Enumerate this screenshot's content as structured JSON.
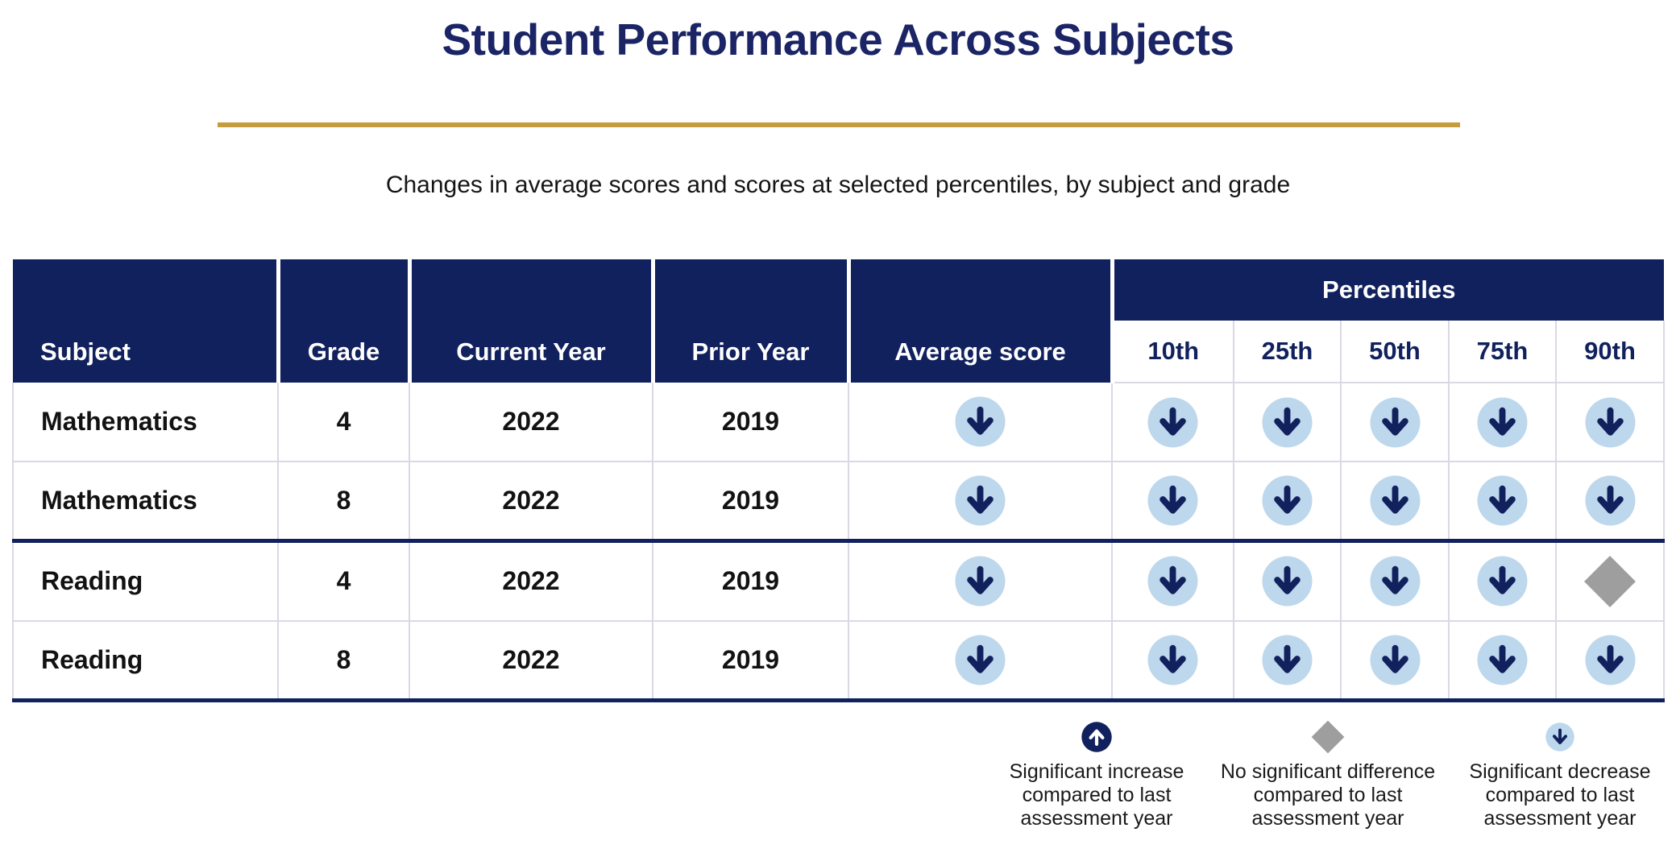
{
  "page": {
    "title": "Student Performance Across Subjects",
    "subtitle": "Changes in average scores and scores at selected percentiles, by subject and grade"
  },
  "colors": {
    "navy": "#11215D",
    "title_navy": "#1B2566",
    "light_blue": "#BDD7EC",
    "gray": "#9E9E9E",
    "gold": "#C59C3E",
    "border_light": "#D9D9E6"
  },
  "table": {
    "column_headers": [
      "Subject",
      "Grade",
      "Current Year",
      "Prior Year",
      "Average score"
    ],
    "percentiles_group_label": "Percentiles",
    "percentile_headers": [
      "10th",
      "25th",
      "50th",
      "75th",
      "90th"
    ],
    "rows": [
      {
        "subject": "Mathematics",
        "grade": "4",
        "current_year": "2022",
        "prior_year": "2019",
        "average_score": "decrease",
        "percentiles": [
          "decrease",
          "decrease",
          "decrease",
          "decrease",
          "decrease"
        ]
      },
      {
        "subject": "Mathematics",
        "grade": "8",
        "current_year": "2022",
        "prior_year": "2019",
        "average_score": "decrease",
        "percentiles": [
          "decrease",
          "decrease",
          "decrease",
          "decrease",
          "decrease"
        ]
      },
      {
        "subject": "Reading",
        "grade": "4",
        "current_year": "2022",
        "prior_year": "2019",
        "average_score": "decrease",
        "percentiles": [
          "decrease",
          "decrease",
          "decrease",
          "decrease",
          "no_significant_difference"
        ]
      },
      {
        "subject": "Reading",
        "grade": "8",
        "current_year": "2022",
        "prior_year": "2019",
        "average_score": "decrease",
        "percentiles": [
          "decrease",
          "decrease",
          "decrease",
          "decrease",
          "decrease"
        ]
      }
    ]
  },
  "legend": {
    "items": [
      {
        "icon": "increase",
        "lines": [
          "Significant increase",
          "compared to last",
          "assessment year"
        ]
      },
      {
        "icon": "no_significant_difference",
        "lines": [
          "No significant difference",
          "compared to last",
          "assessment year"
        ]
      },
      {
        "icon": "decrease",
        "lines": [
          "Significant decrease",
          "compared to last",
          "assessment year"
        ]
      }
    ]
  },
  "chart_data": {
    "type": "table",
    "title": "Student Performance Across Subjects",
    "subtitle": "Changes in average scores and scores at selected percentiles, by subject and grade",
    "columns": [
      "Subject",
      "Grade",
      "Current Year",
      "Prior Year",
      "Average score",
      "10th",
      "25th",
      "50th",
      "75th",
      "90th"
    ],
    "rows": [
      [
        "Mathematics",
        "4",
        "2022",
        "2019",
        "decrease",
        "decrease",
        "decrease",
        "decrease",
        "decrease",
        "decrease"
      ],
      [
        "Mathematics",
        "8",
        "2022",
        "2019",
        "decrease",
        "decrease",
        "decrease",
        "decrease",
        "decrease",
        "decrease"
      ],
      [
        "Reading",
        "4",
        "2022",
        "2019",
        "decrease",
        "decrease",
        "decrease",
        "decrease",
        "decrease",
        "no_significant_difference"
      ],
      [
        "Reading",
        "8",
        "2022",
        "2019",
        "decrease",
        "decrease",
        "decrease",
        "decrease",
        "decrease",
        "decrease"
      ]
    ],
    "legend": {
      "increase": "Significant increase compared to last assessment year",
      "no_significant_difference": "No significant difference compared to last assessment year",
      "decrease": "Significant decrease compared to last assessment year"
    }
  }
}
